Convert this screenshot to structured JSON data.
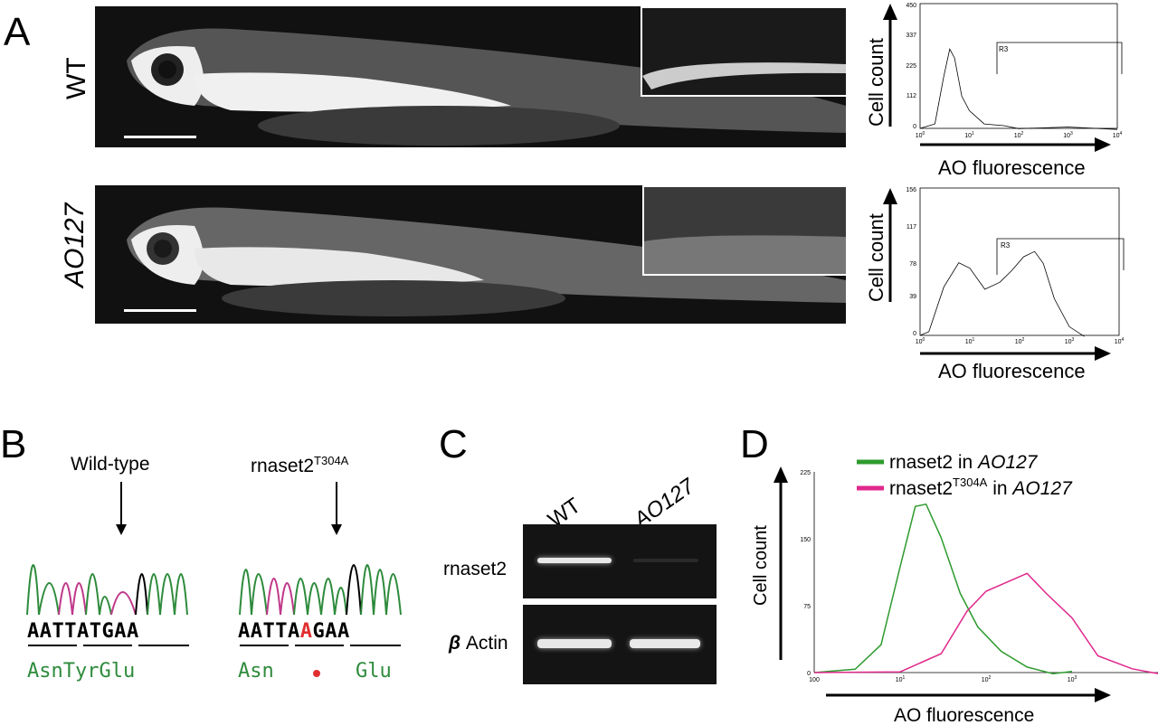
{
  "panels": {
    "A": {
      "letter": "A",
      "rows": [
        {
          "label": "WT"
        },
        {
          "label": "AO127"
        }
      ],
      "hist_wt": {
        "ylabel": "Cell count",
        "xlabel": "AO fluorescence",
        "yticks": [
          "450",
          "337",
          "225",
          "112",
          "0"
        ],
        "xticks": [
          "10",
          "10",
          "10",
          "10",
          "10"
        ],
        "xticks_exp": [
          "0",
          "1",
          "2",
          "3",
          "4"
        ],
        "gate": "R3"
      },
      "hist_ao": {
        "ylabel": "Cell count",
        "xlabel": "AO fluorescence",
        "yticks": [
          "156",
          "117",
          "78",
          "39",
          "0"
        ],
        "xticks": [
          "10",
          "10",
          "10",
          "10",
          "10"
        ],
        "xticks_exp": [
          "0",
          "1",
          "2",
          "3",
          "4"
        ],
        "gate": "R3"
      }
    },
    "B": {
      "letter": "B",
      "wt_label": "Wild-type",
      "mut_label": "rnaset2",
      "mut_sup": "T304A",
      "wt_seq": "AATTATGAA",
      "wt_aa": "AsnTyrGlu",
      "mut_seq_pre": "AATTA",
      "mut_seq_hi": "A",
      "mut_seq_post": "GAA",
      "mut_aa_a": "Asn",
      "mut_aa_b": "Glu"
    },
    "C": {
      "letter": "C",
      "lanes": [
        "WT",
        "AO127"
      ],
      "gene1": "rnaset2",
      "gene2_sym": "β",
      "gene2": " Actin"
    },
    "D": {
      "letter": "D",
      "legend1": "rnaset2 in ",
      "legend1_it": "AO127",
      "legend2": "rnaset2",
      "legend2_sup": "T304A",
      "legend2_mid": " in ",
      "legend2_it": "AO127",
      "ylabel": "Cell count",
      "xlabel": "AO fluorescence",
      "yticks": [
        "225",
        "150",
        "75",
        "0"
      ],
      "xticks": [
        "10",
        "10",
        "10"
      ],
      "xticks_exp": [
        "1",
        "2",
        "3"
      ],
      "xtick0": "100"
    }
  },
  "chart_data": [
    {
      "type": "area",
      "title": "",
      "xlabel": "AO fluorescence",
      "ylabel": "Cell count",
      "xscale": "log",
      "xlim": [
        1,
        10000
      ],
      "ylim": [
        0,
        450
      ],
      "series": [
        {
          "x": [
            1,
            2,
            3,
            4,
            5,
            7,
            10,
            20,
            50,
            100,
            1000,
            10000
          ],
          "values": [
            0,
            20,
            180,
            290,
            250,
            120,
            60,
            20,
            6,
            3,
            1,
            0
          ]
        }
      ]
    },
    {
      "type": "area",
      "title": "",
      "xlabel": "AO fluorescence",
      "ylabel": "Cell count",
      "xscale": "log",
      "xlim": [
        1,
        10000
      ],
      "ylim": [
        0,
        156
      ],
      "series": [
        {
          "x": [
            1,
            1.5,
            3,
            6,
            10,
            20,
            40,
            70,
            120,
            200,
            300,
            500,
            1000,
            2000
          ],
          "values": [
            0,
            5,
            50,
            78,
            70,
            50,
            55,
            70,
            82,
            90,
            75,
            40,
            8,
            0
          ]
        }
      ]
    },
    {
      "type": "line",
      "title": "",
      "xlabel": "AO fluorescence",
      "ylabel": "Cell count",
      "xscale": "log",
      "xlim": [
        1,
        10000
      ],
      "ylim": [
        0,
        225
      ],
      "series": [
        {
          "name": "rnaset2 in AO127",
          "x": [
            1,
            3,
            6,
            10,
            15,
            20,
            30,
            50,
            80,
            150,
            300,
            600,
            1000
          ],
          "values": [
            0,
            5,
            30,
            120,
            185,
            190,
            150,
            90,
            50,
            25,
            5,
            0,
            0
          ]
        },
        {
          "name": "rnaset2T304A in AO127",
          "x": [
            1,
            10,
            30,
            60,
            100,
            200,
            300,
            500,
            1000,
            2000,
            5000,
            10000
          ],
          "values": [
            0,
            2,
            20,
            70,
            90,
            105,
            110,
            90,
            60,
            20,
            3,
            0
          ]
        }
      ]
    }
  ]
}
